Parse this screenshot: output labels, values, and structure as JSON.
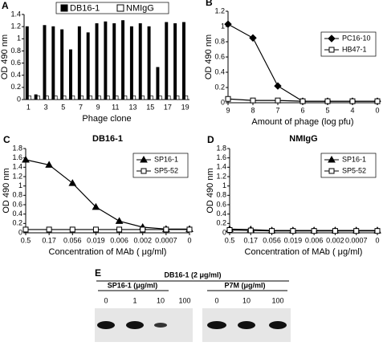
{
  "chart_data": [
    {
      "type": "bar",
      "label": "A",
      "xlabel": "Phage clone",
      "ylabel": "OD 490 nm",
      "categories": [
        "1",
        null,
        "3",
        null,
        "5",
        null,
        "7",
        null,
        "9",
        null,
        "11",
        null,
        "13",
        null,
        "15",
        null,
        "17",
        null,
        "19"
      ],
      "series": [
        {
          "name": "DB16-1",
          "color": "black",
          "values": [
            1.2,
            0.08,
            1.22,
            1.2,
            1.15,
            0.82,
            1.2,
            1.1,
            1.25,
            1.28,
            1.25,
            1.3,
            1.2,
            1.25,
            1.2,
            0.53,
            1.27,
            1.25,
            1.27
          ]
        },
        {
          "name": "NMIgG",
          "color": "white",
          "values": [
            0.06,
            0.06,
            0.06,
            0.06,
            0.06,
            0.06,
            0.06,
            0.06,
            0.06,
            0.06,
            0.06,
            0.06,
            0.06,
            0.06,
            0.06,
            0.06,
            0.06,
            0.06,
            0.06
          ]
        }
      ],
      "ylim": [
        0,
        1.4
      ],
      "yticks": [
        0,
        0.2,
        0.4,
        0.6,
        0.8,
        1,
        1.2,
        1.4
      ],
      "legend": "top"
    },
    {
      "type": "line",
      "label": "B",
      "xlabel": "Amount of phage (log pfu)",
      "ylabel": "OD 490 nm",
      "categories": [
        "9",
        "8",
        "7",
        "6",
        "5",
        "4",
        "0"
      ],
      "series": [
        {
          "name": "PC16-10",
          "color": "black",
          "marker": "diamond",
          "values": [
            1.03,
            0.85,
            0.22,
            0.02,
            0.02,
            0.02,
            0.02
          ]
        },
        {
          "name": "HB47-1",
          "color": "white",
          "marker": "square",
          "values": [
            0.05,
            0.03,
            0.03,
            0.02,
            0.02,
            0.02,
            0.02
          ]
        }
      ],
      "ylim": [
        0,
        1.2
      ],
      "yticks": [
        0,
        0.2,
        0.4,
        0.6,
        0.8,
        1,
        1.2
      ],
      "legend": "upper right"
    },
    {
      "type": "line",
      "label": "C",
      "title": "DB16-1",
      "xlabel": "Concentration of MAb ( μg/ml)",
      "ylabel": "OD 490 nm",
      "categories": [
        "0.5",
        "0.17",
        "0.056",
        "0.019",
        "0.006",
        "0.002",
        "0.0007",
        "0"
      ],
      "series": [
        {
          "name": "SP16-1",
          "color": "black",
          "marker": "triangle",
          "values": [
            1.56,
            1.45,
            1.06,
            0.55,
            0.25,
            0.12,
            0.08,
            0.08
          ]
        },
        {
          "name": "SP5-52",
          "color": "white",
          "marker": "square",
          "values": [
            0.07,
            0.07,
            0.07,
            0.07,
            0.07,
            0.07,
            0.07,
            0.07
          ]
        }
      ],
      "ylim": [
        0,
        1.8
      ],
      "yticks": [
        0,
        0.2,
        0.4,
        0.6,
        0.8,
        1,
        1.2,
        1.4,
        1.6,
        1.8
      ],
      "legend": "upper right"
    },
    {
      "type": "line",
      "label": "D",
      "title": "NMIgG",
      "xlabel": "Concentration of MAb ( μg/ml)",
      "ylabel": "OD 490 nm",
      "categories": [
        "0.5",
        "0.17",
        "0.056",
        "0.019",
        "0.006",
        "0.002",
        "0.0007",
        "0"
      ],
      "series": [
        {
          "name": "SP16-1",
          "color": "black",
          "marker": "triangle",
          "values": [
            0.08,
            0.07,
            0.05,
            0.05,
            0.05,
            0.05,
            0.05,
            0.05
          ]
        },
        {
          "name": "SP5-52",
          "color": "white",
          "marker": "square",
          "values": [
            0.06,
            0.05,
            0.04,
            0.04,
            0.04,
            0.04,
            0.04,
            0.04
          ]
        }
      ],
      "ylim": [
        0,
        1.8
      ],
      "yticks": [
        0,
        0.2,
        0.4,
        0.6,
        0.8,
        1,
        1.2,
        1.4,
        1.6,
        1.8
      ],
      "legend": "upper right"
    }
  ],
  "gel": {
    "label": "E",
    "title": "DB16-1 (2 μg/ml)",
    "groups": [
      {
        "name": "SP16-1 (μg/ml)",
        "lanes": [
          "0",
          "1",
          "10",
          "100"
        ]
      },
      {
        "name": "P7M (μg/ml)",
        "lanes": [
          "0",
          "10",
          "100"
        ]
      }
    ]
  }
}
